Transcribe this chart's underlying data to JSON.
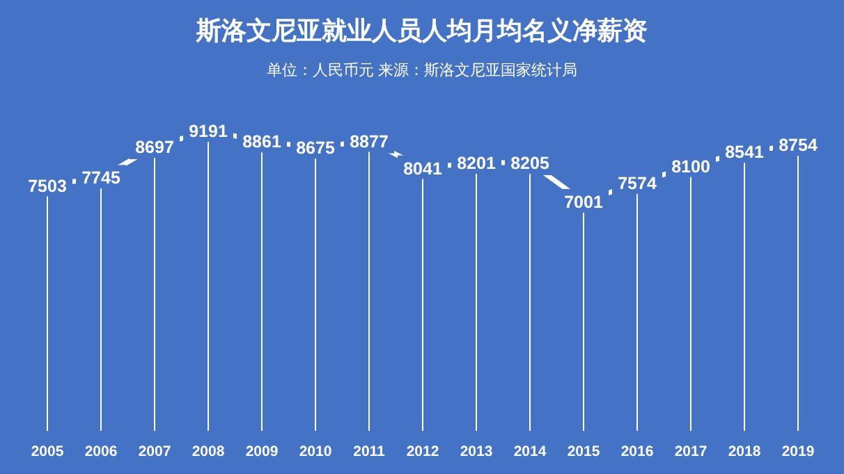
{
  "chart_data": {
    "type": "line",
    "title": "斯洛文尼亚就业人员人均月均名义净薪资",
    "subtitle": "单位：人民币元  来源：斯洛文尼亚国家统计局",
    "categories": [
      "2005",
      "2006",
      "2007",
      "2008",
      "2009",
      "2010",
      "2011",
      "2012",
      "2013",
      "2014",
      "2015",
      "2016",
      "2017",
      "2018",
      "2019"
    ],
    "values": [
      7503,
      7745,
      8697,
      9191,
      8861,
      8675,
      8877,
      8041,
      8201,
      8205,
      7001,
      7574,
      8100,
      8541,
      8754
    ],
    "color": "#ffffff",
    "data_labels": true,
    "line_style": "solid",
    "grid": "x"
  }
}
